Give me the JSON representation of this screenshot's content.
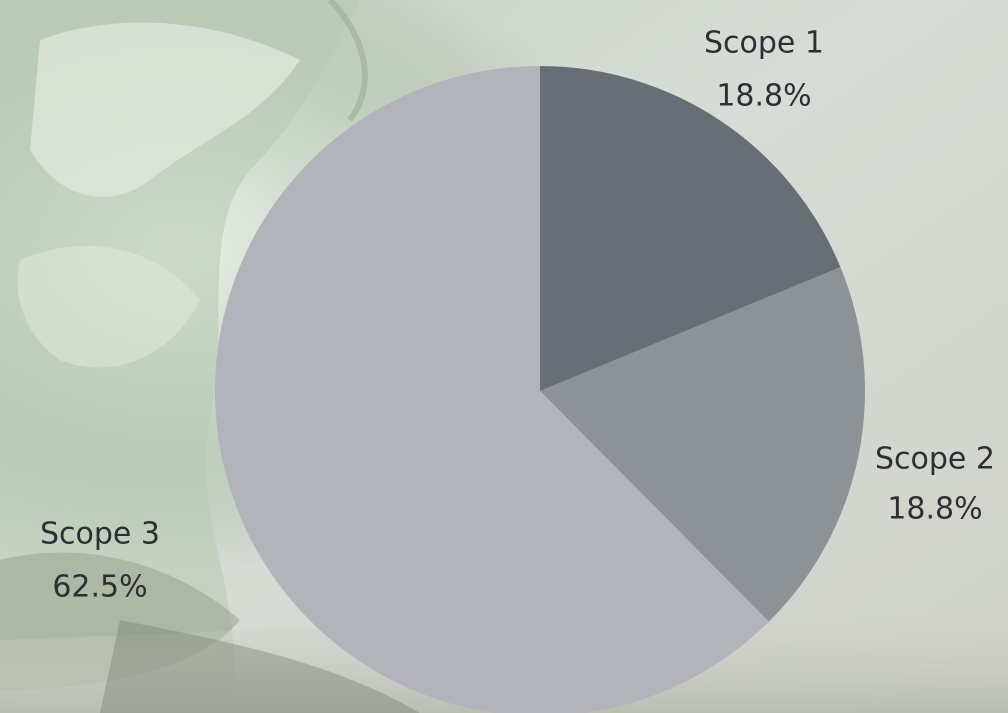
{
  "chart_data": {
    "type": "pie",
    "slices": [
      {
        "label": "Scope 1",
        "value": 18.8,
        "value_label": "18.8%",
        "color": "#686e75"
      },
      {
        "label": "Scope 2",
        "value": 18.8,
        "value_label": "18.8%",
        "color": "#8d9297"
      },
      {
        "label": "Scope 3",
        "value": 62.5,
        "value_label": "62.5%",
        "color": "#b3b3bb"
      }
    ],
    "start_angle": "12 o'clock",
    "direction": "clockwise",
    "legend": "none",
    "labels_position": "outside"
  }
}
